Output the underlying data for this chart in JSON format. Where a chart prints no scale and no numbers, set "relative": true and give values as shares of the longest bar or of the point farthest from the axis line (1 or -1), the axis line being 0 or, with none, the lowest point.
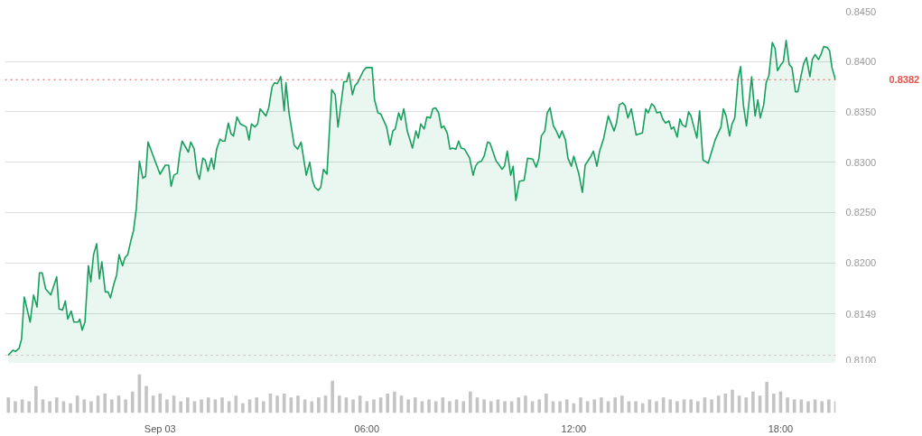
{
  "chart_data": [
    {
      "type": "area",
      "x": [
        -4.41,
        -4.27,
        -4.19,
        -4.09,
        -4.02,
        -3.94,
        -3.77,
        -3.67,
        -3.57,
        -3.5,
        -3.42,
        -3.32,
        -3.17,
        -3.0,
        -2.93,
        -2.83,
        -2.75,
        -2.68,
        -2.58,
        -2.5,
        -2.38,
        -2.33,
        -2.26,
        -2.18,
        -2.08,
        -2.01,
        -1.93,
        -1.84,
        -1.76,
        -1.69,
        -1.59,
        -1.51,
        -1.44,
        -1.34,
        -1.26,
        -1.19,
        -1.09,
        -1.02,
        -0.94,
        -0.84,
        -0.77,
        -0.69,
        -0.6,
        -0.5,
        -0.42,
        -0.35,
        -0.22,
        0.0,
        0.15,
        0.25,
        0.32,
        0.4,
        0.5,
        0.57,
        0.64,
        0.82,
        0.89,
        0.99,
        1.07,
        1.14,
        1.24,
        1.31,
        1.39,
        1.49,
        1.56,
        1.64,
        1.74,
        1.81,
        1.88,
        1.98,
        2.06,
        2.13,
        2.23,
        2.33,
        2.5,
        2.58,
        2.65,
        2.75,
        2.83,
        2.9,
        3.07,
        3.15,
        3.25,
        3.32,
        3.4,
        3.5,
        3.6,
        3.65,
        3.74,
        3.89,
        3.99,
        4.09,
        4.24,
        4.34,
        4.42,
        4.49,
        4.59,
        4.66,
        4.74,
        4.84,
        4.98,
        5.08,
        5.16,
        5.23,
        5.33,
        5.41,
        5.48,
        5.58,
        5.65,
        5.73,
        5.9,
        5.98,
        6.15,
        6.22,
        6.32,
        6.4,
        6.57,
        6.67,
        6.75,
        6.82,
        6.92,
        6.99,
        7.07,
        7.17,
        7.32,
        7.42,
        7.49,
        7.56,
        7.66,
        7.74,
        7.84,
        7.91,
        7.99,
        8.08,
        8.16,
        8.23,
        8.33,
        8.41,
        8.48,
        8.58,
        8.66,
        8.73,
        8.83,
        8.98,
        9.08,
        9.15,
        9.23,
        9.32,
        9.4,
        9.5,
        9.57,
        9.75,
        9.82,
        9.92,
        9.99,
        10.07,
        10.17,
        10.24,
        10.32,
        10.42,
        10.56,
        10.66,
        10.81,
        10.91,
        10.99,
        11.06,
        11.16,
        11.23,
        11.31,
        11.41,
        11.48,
        11.58,
        11.66,
        11.76,
        11.83,
        11.93,
        12.0,
        12.15,
        12.25,
        12.33,
        12.5,
        12.57,
        12.67,
        12.75,
        12.87,
        13.0,
        13.17,
        13.24,
        13.32,
        13.42,
        13.49,
        13.57,
        13.67,
        13.81,
        13.99,
        14.09,
        14.16,
        14.26,
        14.33,
        14.41,
        14.51,
        14.58,
        14.66,
        14.76,
        14.83,
        14.9,
        15.0,
        15.08,
        15.15,
        15.25,
        15.33,
        15.4,
        15.57,
        15.65,
        15.75,
        15.9,
        16.02,
        16.1,
        16.27,
        16.34,
        16.42,
        16.52,
        16.59,
        16.67,
        16.77,
        16.84,
        16.92,
        17.01,
        17.16,
        17.26,
        17.34,
        17.41,
        17.51,
        17.58,
        17.66,
        17.76,
        17.84,
        17.91,
        18.01,
        18.08,
        18.16,
        18.25,
        18.33,
        18.43,
        18.5,
        18.6,
        18.67,
        18.75,
        18.85,
        18.92,
        19.0,
        19.1,
        19.17,
        19.25,
        19.35,
        19.42,
        19.49,
        19.59
      ],
      "series": [
        {
          "color": "#16a05d",
          "values": [
            0.8108,
            0.8113,
            0.8112,
            0.8115,
            0.8124,
            0.8166,
            0.8141,
            0.8168,
            0.8156,
            0.819,
            0.819,
            0.8174,
            0.8168,
            0.8186,
            0.8154,
            0.8153,
            0.8162,
            0.8144,
            0.8152,
            0.8141,
            0.8141,
            0.8144,
            0.8133,
            0.8141,
            0.8197,
            0.8181,
            0.8208,
            0.8219,
            0.8184,
            0.8201,
            0.8171,
            0.8171,
            0.8165,
            0.8179,
            0.8188,
            0.8208,
            0.8197,
            0.8205,
            0.8208,
            0.8223,
            0.8232,
            0.8254,
            0.8301,
            0.8284,
            0.8286,
            0.832,
            0.8308,
            0.8288,
            0.8297,
            0.8297,
            0.8276,
            0.8287,
            0.8289,
            0.8309,
            0.8321,
            0.831,
            0.832,
            0.8313,
            0.829,
            0.8283,
            0.8304,
            0.8302,
            0.8291,
            0.8304,
            0.8293,
            0.8313,
            0.8323,
            0.8321,
            0.8321,
            0.8339,
            0.8328,
            0.8326,
            0.8345,
            0.8338,
            0.8335,
            0.8322,
            0.8338,
            0.8335,
            0.8338,
            0.8353,
            0.8346,
            0.8354,
            0.8375,
            0.8379,
            0.8378,
            0.8385,
            0.8351,
            0.8379,
            0.8349,
            0.8317,
            0.8313,
            0.832,
            0.8287,
            0.83,
            0.8282,
            0.8275,
            0.8272,
            0.8275,
            0.8293,
            0.8288,
            0.8372,
            0.8367,
            0.8335,
            0.8353,
            0.838,
            0.838,
            0.8389,
            0.8367,
            0.8376,
            0.8379,
            0.8391,
            0.8394,
            0.8394,
            0.8362,
            0.8349,
            0.8348,
            0.8335,
            0.8317,
            0.8331,
            0.8333,
            0.8349,
            0.8342,
            0.8353,
            0.8331,
            0.8314,
            0.8331,
            0.8324,
            0.8338,
            0.8333,
            0.8345,
            0.8344,
            0.8353,
            0.8354,
            0.8349,
            0.8334,
            0.8336,
            0.8329,
            0.8313,
            0.8314,
            0.8313,
            0.8321,
            0.8314,
            0.8313,
            0.8304,
            0.8287,
            0.8296,
            0.83,
            0.8301,
            0.8306,
            0.832,
            0.8319,
            0.8301,
            0.8298,
            0.8293,
            0.8296,
            0.8311,
            0.8287,
            0.8296,
            0.8262,
            0.8281,
            0.8282,
            0.8304,
            0.8303,
            0.8295,
            0.8304,
            0.8326,
            0.8331,
            0.8349,
            0.8354,
            0.8336,
            0.8332,
            0.8324,
            0.8331,
            0.8322,
            0.8304,
            0.8296,
            0.8306,
            0.8288,
            0.827,
            0.8297,
            0.8306,
            0.8311,
            0.8296,
            0.8311,
            0.8324,
            0.8346,
            0.8331,
            0.8339,
            0.8357,
            0.8359,
            0.8356,
            0.8344,
            0.8353,
            0.8327,
            0.8329,
            0.8353,
            0.8349,
            0.8358,
            0.8356,
            0.8349,
            0.835,
            0.8343,
            0.8339,
            0.8341,
            0.8333,
            0.8335,
            0.8325,
            0.8343,
            0.8337,
            0.8335,
            0.835,
            0.8346,
            0.8324,
            0.8351,
            0.8302,
            0.8299,
            0.8313,
            0.8322,
            0.8335,
            0.8353,
            0.8346,
            0.8326,
            0.8338,
            0.8344,
            0.8384,
            0.8395,
            0.8357,
            0.8336,
            0.8385,
            0.8346,
            0.8362,
            0.8344,
            0.8357,
            0.8379,
            0.8386,
            0.8419,
            0.8413,
            0.8391,
            0.8397,
            0.84,
            0.8421,
            0.8397,
            0.8394,
            0.837,
            0.837,
            0.8387,
            0.8398,
            0.8404,
            0.8385,
            0.8402,
            0.8407,
            0.8402,
            0.8407,
            0.8415,
            0.8414,
            0.8411,
            0.8394,
            0.8382
          ]
        }
      ],
      "xlim": [
        -4.5,
        19.6
      ],
      "ylim": [
        0.81,
        0.845
      ],
      "yticks": [
        {
          "value": 0.81,
          "label": "0.8100"
        },
        {
          "value": 0.8149,
          "label": "0.8149"
        },
        {
          "value": 0.82,
          "label": "0.8200"
        },
        {
          "value": 0.825,
          "label": "0.8250"
        },
        {
          "value": 0.83,
          "label": "0.8300"
        },
        {
          "value": 0.835,
          "label": "0.8350"
        },
        {
          "value": 0.84,
          "label": "0.8400"
        },
        {
          "value": 0.845,
          "label": "0.8450"
        }
      ],
      "ref_lines": [
        {
          "axis": "y",
          "value": 0.8382,
          "label": "0.8382",
          "color": "#e5534b",
          "line_style": "dotted"
        },
        {
          "axis": "y",
          "value": 0.8108,
          "label": null,
          "color": "#d9b3b3",
          "line_style": "dotted"
        }
      ],
      "grid": "y",
      "tick_labels": "y"
    },
    {
      "type": "bar",
      "relative": true,
      "color": "#c4c4c4",
      "x": [
        -4.4,
        -4.2,
        -4.0,
        -3.8,
        -3.6,
        -3.4,
        -3.2,
        -3.0,
        -2.8,
        -2.6,
        -2.4,
        -2.2,
        -2.0,
        -1.8,
        -1.6,
        -1.4,
        -1.2,
        -1.0,
        -0.8,
        -0.6,
        -0.4,
        -0.2,
        0.0,
        0.2,
        0.4,
        0.6,
        0.8,
        1.0,
        1.2,
        1.4,
        1.6,
        1.8,
        2.0,
        2.2,
        2.4,
        2.6,
        2.8,
        3.0,
        3.2,
        3.4,
        3.6,
        3.8,
        4.0,
        4.2,
        4.4,
        4.6,
        4.8,
        5.0,
        5.2,
        5.4,
        5.6,
        5.8,
        6.0,
        6.2,
        6.4,
        6.6,
        6.8,
        7.0,
        7.2,
        7.4,
        7.6,
        7.8,
        8.0,
        8.2,
        8.4,
        8.6,
        8.8,
        9.0,
        9.2,
        9.4,
        9.6,
        9.8,
        10.0,
        10.2,
        10.4,
        10.6,
        10.8,
        11.0,
        11.2,
        11.4,
        11.6,
        11.8,
        12.0,
        12.2,
        12.4,
        12.6,
        12.8,
        13.0,
        13.2,
        13.4,
        13.6,
        13.8,
        14.0,
        14.2,
        14.4,
        14.6,
        14.8,
        15.0,
        15.2,
        15.4,
        15.6,
        15.8,
        16.0,
        16.2,
        16.4,
        16.6,
        16.8,
        17.0,
        17.2,
        17.4,
        17.6,
        17.8,
        18.0,
        18.2,
        18.4,
        18.6,
        18.8,
        19.0,
        19.2,
        19.4,
        19.6
      ],
      "values": [
        0.4,
        0.3,
        0.35,
        0.3,
        0.69,
        0.35,
        0.3,
        0.4,
        0.3,
        0.25,
        0.45,
        0.35,
        0.3,
        0.45,
        0.5,
        0.35,
        0.45,
        0.35,
        0.55,
        1.0,
        0.7,
        0.45,
        0.5,
        0.35,
        0.45,
        0.3,
        0.4,
        0.3,
        0.35,
        0.4,
        0.35,
        0.4,
        0.3,
        0.45,
        0.25,
        0.35,
        0.4,
        0.3,
        0.5,
        0.45,
        0.5,
        0.4,
        0.45,
        0.35,
        0.3,
        0.4,
        0.45,
        0.83,
        0.45,
        0.4,
        0.35,
        0.45,
        0.3,
        0.35,
        0.4,
        0.5,
        0.55,
        0.45,
        0.35,
        0.4,
        0.3,
        0.35,
        0.3,
        0.4,
        0.3,
        0.35,
        0.3,
        0.55,
        0.4,
        0.35,
        0.3,
        0.35,
        0.3,
        0.3,
        0.4,
        0.45,
        0.3,
        0.35,
        0.5,
        0.3,
        0.3,
        0.35,
        0.25,
        0.4,
        0.3,
        0.35,
        0.4,
        0.3,
        0.4,
        0.45,
        0.3,
        0.3,
        0.25,
        0.35,
        0.3,
        0.4,
        0.35,
        0.3,
        0.35,
        0.35,
        0.3,
        0.4,
        0.35,
        0.45,
        0.5,
        0.6,
        0.45,
        0.4,
        0.55,
        0.45,
        0.8,
        0.5,
        0.55,
        0.4,
        0.35,
        0.35,
        0.3,
        0.35,
        0.3,
        0.35,
        0.3
      ],
      "xlim": [
        -4.5,
        19.6
      ],
      "xticks": [
        {
          "value": 0,
          "label": "Sep 03"
        },
        {
          "value": 6,
          "label": "06:00"
        },
        {
          "value": 12,
          "label": "12:00"
        },
        {
          "value": 18,
          "label": "18:00"
        }
      ],
      "grid": false,
      "tick_labels": "x"
    }
  ]
}
